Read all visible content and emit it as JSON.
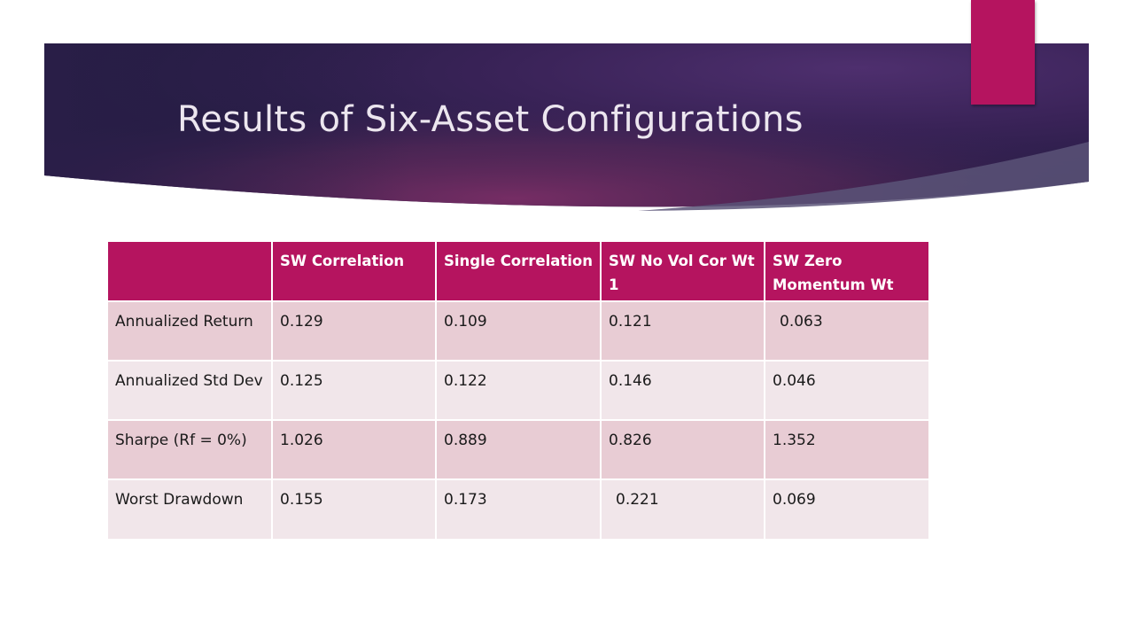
{
  "slide": {
    "title": "Results of Six-Asset Configurations"
  },
  "table": {
    "headers": [
      "",
      "SW Correlation",
      "Single Correlation",
      "SW No Vol Cor Wt 1",
      "SW Zero Momentum Wt"
    ],
    "rows": [
      {
        "label": "Annualized Return",
        "values": [
          "0.129",
          "0.109",
          "0.121",
          "0.063"
        ]
      },
      {
        "label": "Annualized Std Dev",
        "values": [
          "0.125",
          "0.122",
          "0.146",
          "0.046"
        ]
      },
      {
        "label": "Sharpe (Rf = 0%)",
        "values": [
          "1.026",
          "0.889",
          "0.826",
          "1.352"
        ]
      },
      {
        "label": "Worst Drawdown",
        "values": [
          "0.155",
          "0.173",
          "0.221",
          "0.069"
        ]
      }
    ]
  },
  "colors": {
    "header_band_dark": "#241c45",
    "header_band_mid": "#6a2b63",
    "accent": "#b5145f",
    "row_odd": "#e8ccd4",
    "row_even": "#f1e6ea"
  }
}
